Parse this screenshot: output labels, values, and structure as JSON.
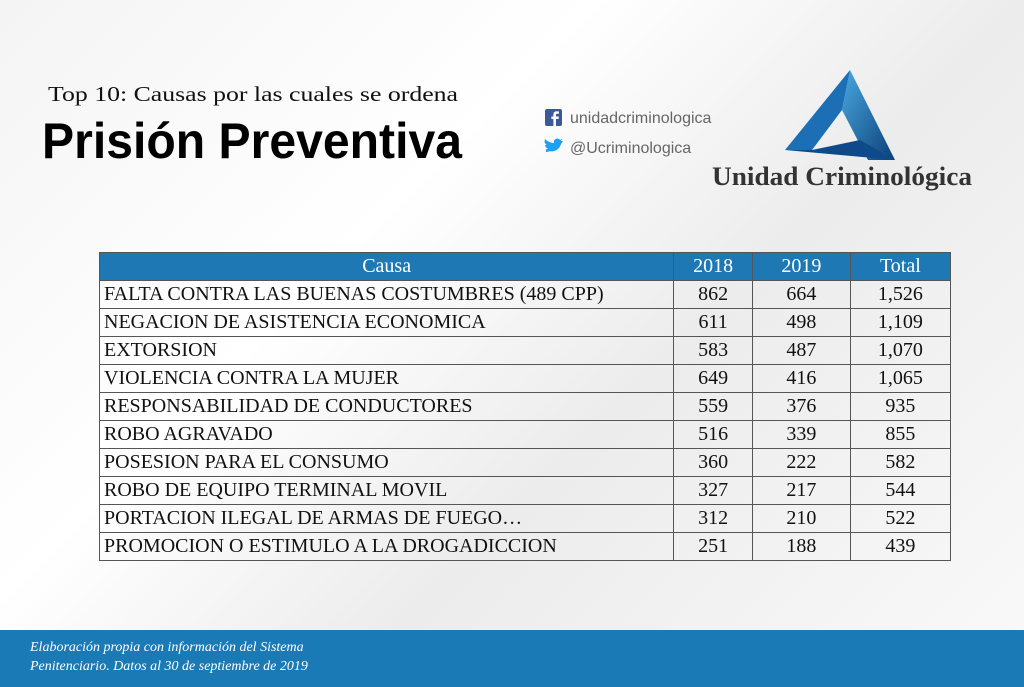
{
  "header": {
    "subtitle": "Top 10: Causas por las cuales se ordena",
    "title": "Prisión Preventiva"
  },
  "social": {
    "facebook": "unidadcriminologica",
    "twitter": "@Ucriminologica"
  },
  "logo": {
    "name": "Unidad Criminológica"
  },
  "table": {
    "columns": [
      "Causa",
      "2018",
      "2019",
      "Total"
    ],
    "rows": [
      [
        "FALTA CONTRA LAS BUENAS COSTUMBRES (489 CPP)",
        "862",
        "664",
        "1,526"
      ],
      [
        "NEGACION DE ASISTENCIA ECONOMICA",
        "611",
        "498",
        "1,109"
      ],
      [
        "EXTORSION",
        "583",
        "487",
        "1,070"
      ],
      [
        "VIOLENCIA CONTRA LA MUJER",
        "649",
        "416",
        "1,065"
      ],
      [
        "RESPONSABILIDAD DE CONDUCTORES",
        "559",
        "376",
        "935"
      ],
      [
        "ROBO AGRAVADO",
        "516",
        "339",
        "855"
      ],
      [
        "POSESION PARA EL CONSUMO",
        "360",
        "222",
        "582"
      ],
      [
        "ROBO DE EQUIPO TERMINAL MOVIL",
        "327",
        "217",
        "544"
      ],
      [
        "PORTACION ILEGAL DE ARMAS DE FUEGO…",
        "312",
        "210",
        "522"
      ],
      [
        "PROMOCION O ESTIMULO A LA DROGADICCION",
        "251",
        "188",
        "439"
      ]
    ]
  },
  "footer": {
    "lines": [
      "Elaboración propia con información del Sistema",
      "Penitenciario. Datos al 30  de septiembre de 2019"
    ]
  }
}
